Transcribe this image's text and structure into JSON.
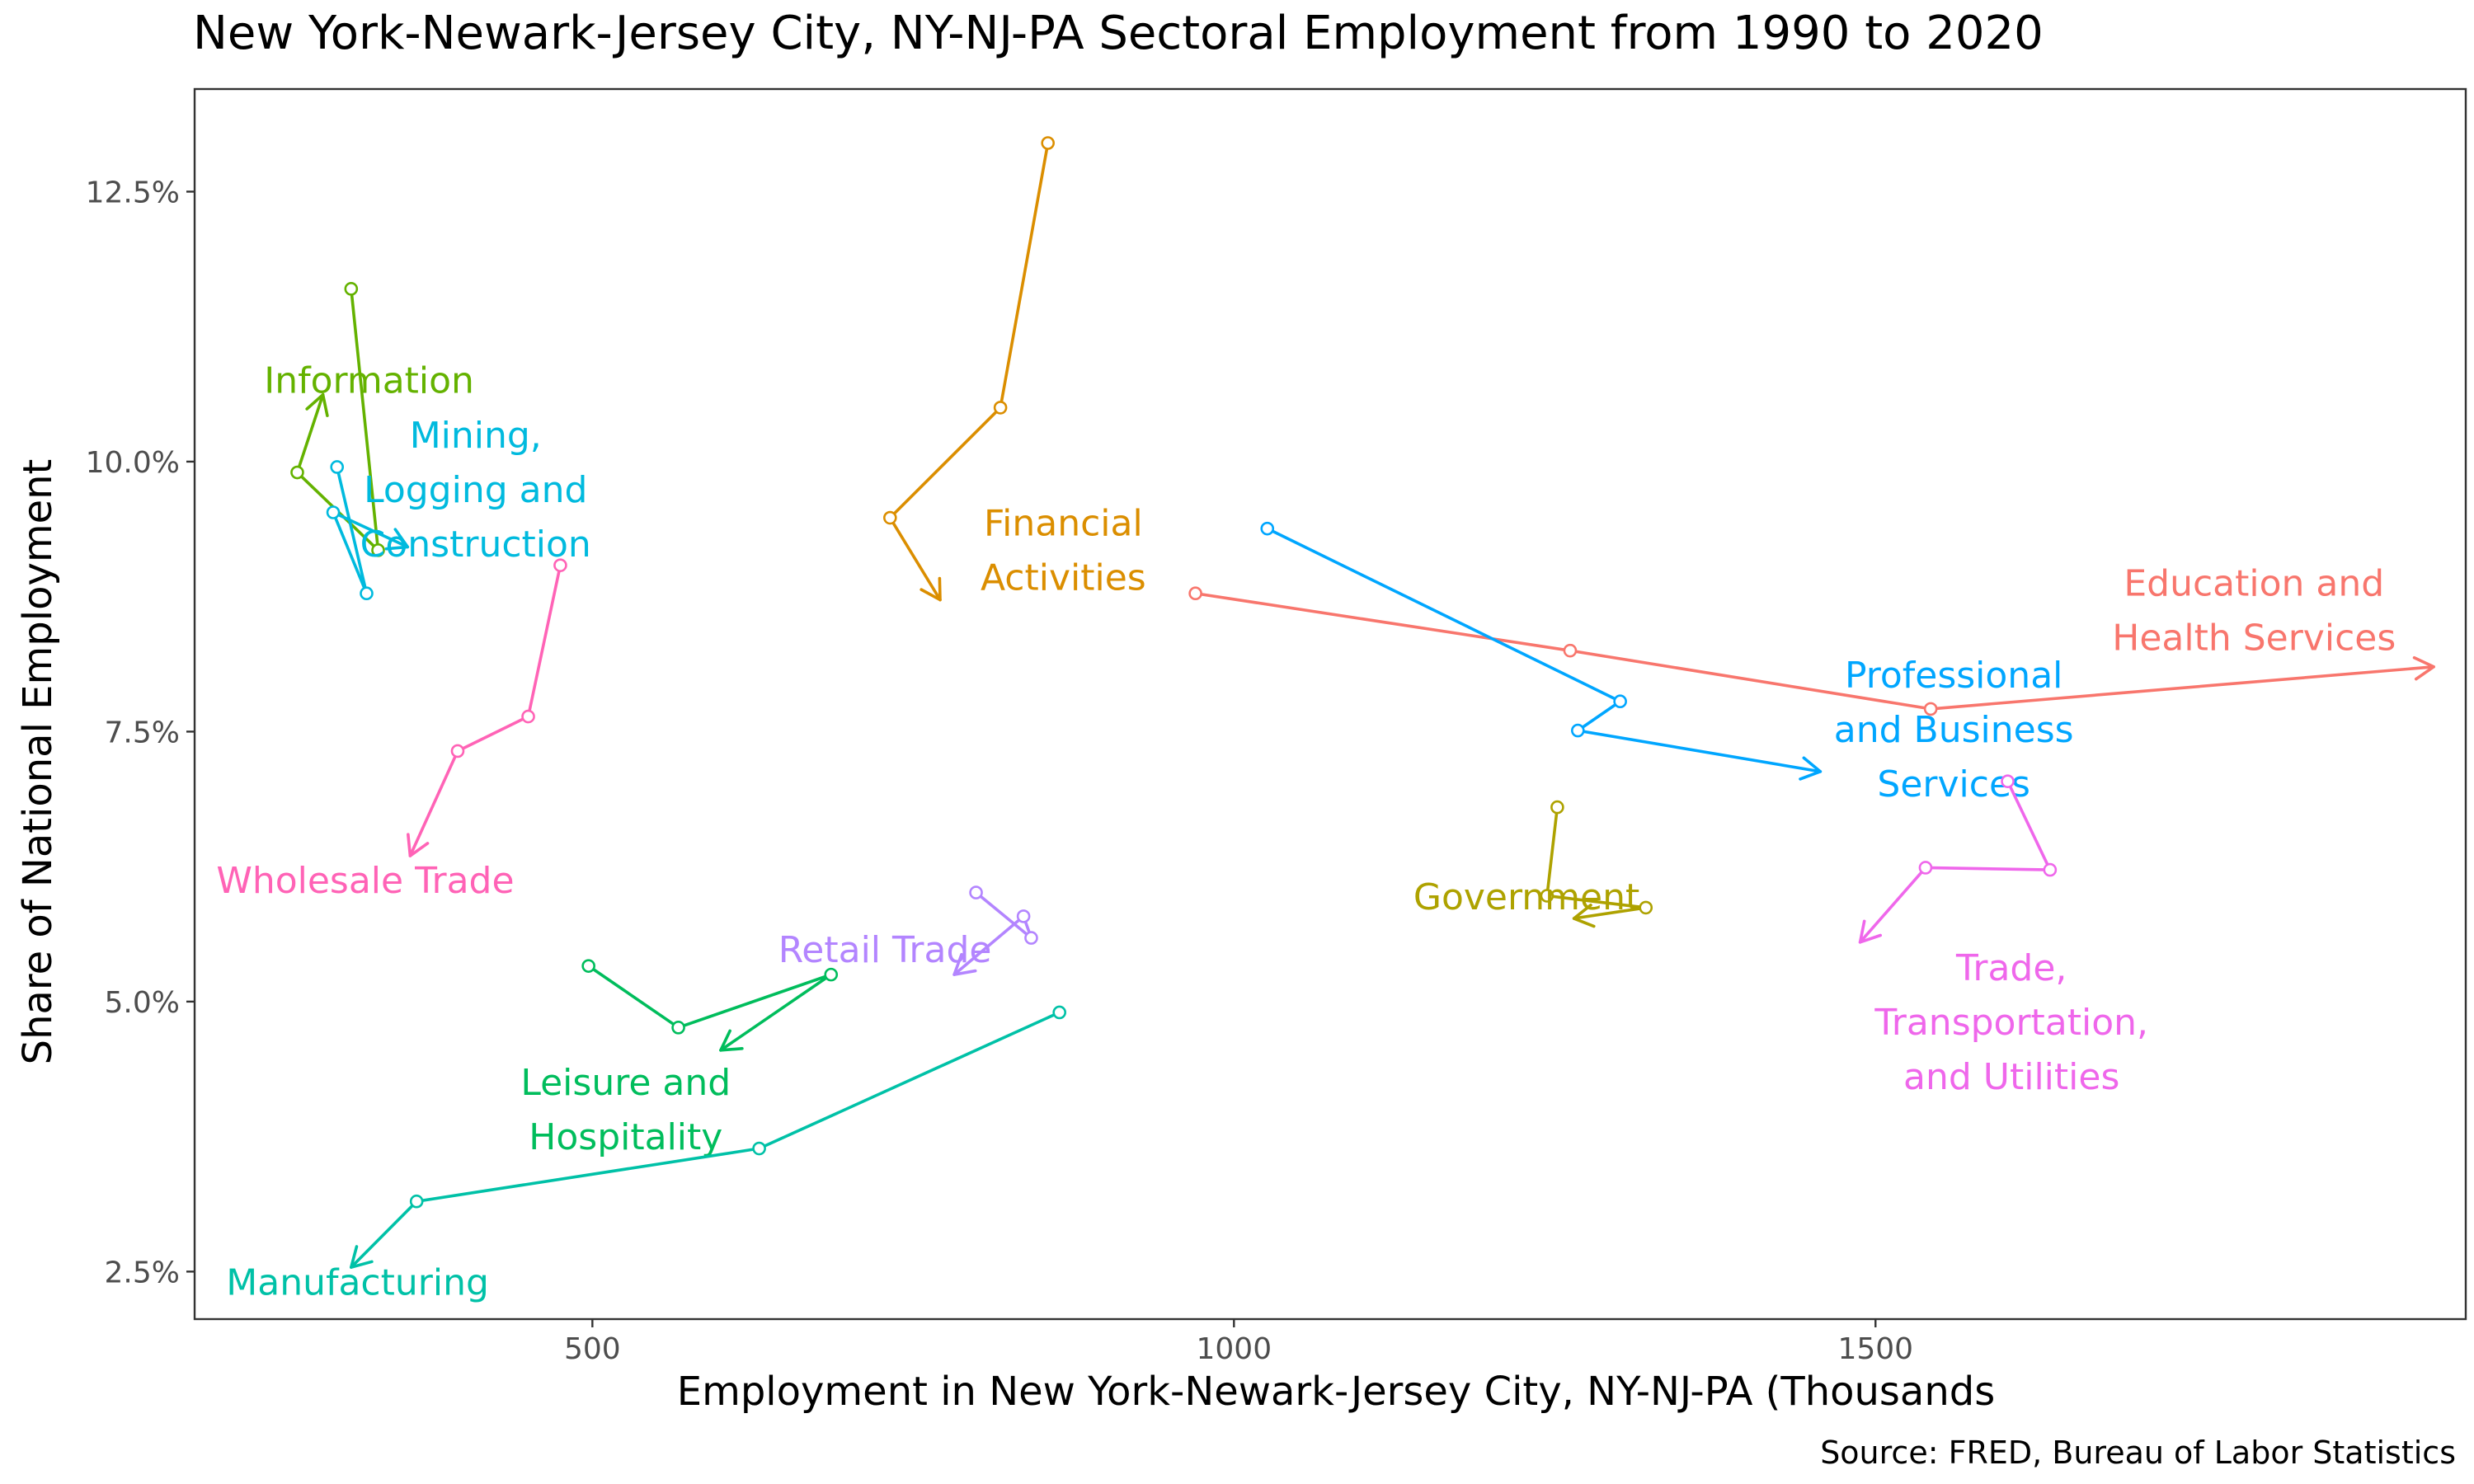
{
  "chart_data": {
    "type": "line",
    "title": "New York-Newark-Jersey City, NY-NJ-PA  Sectoral Employment from 1990 to 2020",
    "xlabel": "Employment in New York-Newark-Jersey City, NY-NJ-PA  (Thousands",
    "ylabel": "Share of National Employment",
    "source": "FRED, Bureau of Labor Statistics",
    "source_label": "Source: FRED, Bureau of Labor Statistics",
    "xlim": [
      190,
      1960
    ],
    "ylim": [
      0.0206,
      0.1345
    ],
    "xticks": [
      500,
      1000,
      1500
    ],
    "xtick_labels": [
      "500",
      "1000",
      "1500"
    ],
    "yticks": [
      0.025,
      0.05,
      0.075,
      0.1,
      0.125
    ],
    "ytick_labels": [
      "2.5%",
      "5.0%",
      "7.5%",
      "10.0%",
      "12.5%"
    ],
    "grid": false,
    "series": [
      {
        "name": "Education and Health Services",
        "label_lines": [
          "Education and",
          "Health Services"
        ],
        "color": "#F8766D",
        "x": [
          970,
          1262,
          1543,
          1935
        ],
        "y": [
          0.0878,
          0.0825,
          0.0771,
          0.081
        ],
        "label_x": 1795,
        "label_y": 0.0862
      },
      {
        "name": "Financial Activities",
        "label_lines": [
          "Financial",
          "Activities"
        ],
        "color": "#DB8E00",
        "x": [
          855,
          818,
          732,
          771
        ],
        "y": [
          0.1295,
          0.105,
          0.0948,
          0.0872
        ],
        "label_x": 867,
        "label_y": 0.0918
      },
      {
        "name": "Government",
        "label_lines": [
          "Government"
        ],
        "color": "#AEA200",
        "x": [
          1252,
          1244,
          1321,
          1265
        ],
        "y": [
          0.068,
          0.0598,
          0.0587,
          0.0577
        ],
        "label_x": 1228,
        "label_y": 0.0597
      },
      {
        "name": "Information",
        "label_lines": [
          "Information"
        ],
        "color": "#64B200",
        "x": [
          312,
          333,
          270,
          290
        ],
        "y": [
          0.116,
          0.0918,
          0.099,
          0.1062
        ],
        "label_x": 326,
        "label_y": 0.1075
      },
      {
        "name": "Leisure and Hospitality",
        "label_lines": [
          "Leisure and",
          "Hospitality"
        ],
        "color": "#00BD5C",
        "x": [
          497,
          567,
          686,
          600
        ],
        "y": [
          0.0533,
          0.0476,
          0.0525,
          0.0455
        ],
        "label_x": 526,
        "label_y": 0.04
      },
      {
        "name": "Manufacturing",
        "label_lines": [
          "Manufacturing"
        ],
        "color": "#00C1A7",
        "x": [
          864,
          630,
          363,
          312
        ],
        "y": [
          0.049,
          0.0364,
          0.0315,
          0.0254
        ],
        "label_x": 317,
        "label_y": 0.024
      },
      {
        "name": "Mining, Logging and Construction",
        "label_lines": [
          "Mining,",
          "Logging and",
          "Construction"
        ],
        "color": "#00BADE",
        "x": [
          301,
          324,
          298,
          356
        ],
        "y": [
          0.0995,
          0.0878,
          0.0953,
          0.0921
        ],
        "label_x": 409,
        "label_y": 0.0974
      },
      {
        "name": "Professional and Business Services",
        "label_lines": [
          "Professional",
          "and Business",
          "Services"
        ],
        "color": "#00A6FF",
        "x": [
          1026,
          1301,
          1268,
          1457
        ],
        "y": [
          0.0938,
          0.0778,
          0.0751,
          0.0713
        ],
        "label_x": 1561,
        "label_y": 0.0752
      },
      {
        "name": "Retail Trade",
        "label_lines": [
          "Retail Trade"
        ],
        "color": "#B385FF",
        "x": [
          799,
          842,
          836,
          782
        ],
        "y": [
          0.0601,
          0.0559,
          0.0579,
          0.0525
        ],
        "label_x": 728,
        "label_y": 0.0548
      },
      {
        "name": "Trade, Transportation, and Utilities",
        "label_lines": [
          "Trade,",
          "Transportation,",
          "and Utilities"
        ],
        "color": "#EF67EB",
        "x": [
          1603,
          1636,
          1539,
          1488
        ],
        "y": [
          0.0704,
          0.0622,
          0.0624,
          0.0555
        ],
        "label_x": 1606,
        "label_y": 0.0481
      },
      {
        "name": "Wholesale Trade",
        "label_lines": [
          "Wholesale Trade"
        ],
        "color": "#FF63B6",
        "x": [
          475,
          450,
          395,
          358
        ],
        "y": [
          0.0904,
          0.0764,
          0.0732,
          0.0635
        ],
        "label_x": 323,
        "label_y": 0.0612
      }
    ]
  }
}
